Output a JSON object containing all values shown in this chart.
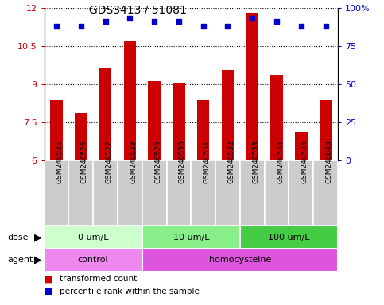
{
  "title": "GDS3413 / 51081",
  "samples": [
    "GSM240525",
    "GSM240526",
    "GSM240527",
    "GSM240528",
    "GSM240529",
    "GSM240530",
    "GSM240531",
    "GSM240532",
    "GSM240533",
    "GSM240534",
    "GSM240535",
    "GSM240848"
  ],
  "bar_values": [
    8.35,
    7.85,
    9.6,
    10.7,
    9.1,
    9.05,
    8.35,
    9.55,
    11.8,
    9.35,
    7.1,
    8.35
  ],
  "dot_values": [
    88,
    88,
    91,
    93,
    91,
    91,
    88,
    88,
    93,
    91,
    88,
    88
  ],
  "bar_color": "#cc0000",
  "dot_color": "#0000cc",
  "ylim_left": [
    6,
    12
  ],
  "ylim_right": [
    0,
    100
  ],
  "yticks_left": [
    6,
    7.5,
    9,
    10.5,
    12
  ],
  "yticks_right": [
    0,
    25,
    50,
    75,
    100
  ],
  "ytick_labels_left": [
    "6",
    "7.5",
    "9",
    "10.5",
    "12"
  ],
  "ytick_labels_right": [
    "0",
    "25",
    "50",
    "75",
    "100%"
  ],
  "dose_groups": [
    {
      "label": "0 um/L",
      "start": 0,
      "end": 4,
      "color": "#ccffcc"
    },
    {
      "label": "10 um/L",
      "start": 4,
      "end": 8,
      "color": "#88ee88"
    },
    {
      "label": "100 um/L",
      "start": 8,
      "end": 12,
      "color": "#44cc44"
    }
  ],
  "agent_groups": [
    {
      "label": "control",
      "start": 0,
      "end": 4,
      "color": "#ee88ee"
    },
    {
      "label": "homocysteine",
      "start": 4,
      "end": 12,
      "color": "#dd55dd"
    }
  ],
  "legend_red_label": "transformed count",
  "legend_blue_label": "percentile rank within the sample",
  "dose_label": "dose",
  "agent_label": "agent",
  "bar_width": 0.5,
  "tick_label_color_left": "#cc0000",
  "tick_label_color_right": "#0000cc",
  "xticklabel_bg": "#cccccc",
  "fig_width": 4.83,
  "fig_height": 3.84
}
